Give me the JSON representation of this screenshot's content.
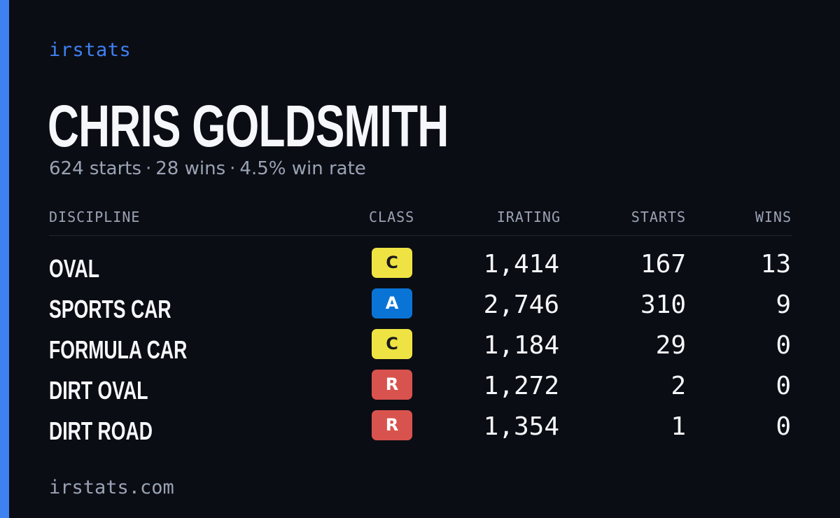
{
  "brand": "irstats",
  "driver": {
    "name": "CHRIS GOLDSMITH",
    "starts_text": "624 starts",
    "wins_text": "28 wins",
    "winrate_text": "4.5% win rate",
    "separator": "·"
  },
  "table": {
    "headers": {
      "discipline": "DISCIPLINE",
      "class": "CLASS",
      "irating": "IRATING",
      "starts": "STARTS",
      "wins": "WINS"
    },
    "rows": [
      {
        "discipline": "OVAL",
        "class": "C",
        "irating": "1,414",
        "starts": "167",
        "wins": "13"
      },
      {
        "discipline": "SPORTS CAR",
        "class": "A",
        "irating": "2,746",
        "starts": "310",
        "wins": "9"
      },
      {
        "discipline": "FORMULA CAR",
        "class": "C",
        "irating": "1,184",
        "starts": "29",
        "wins": "0"
      },
      {
        "discipline": "DIRT OVAL",
        "class": "R",
        "irating": "1,272",
        "starts": "2",
        "wins": "0"
      },
      {
        "discipline": "DIRT ROAD",
        "class": "R",
        "irating": "1,354",
        "starts": "1",
        "wins": "0"
      }
    ]
  },
  "class_colors": {
    "A": {
      "bg": "#0a74d6",
      "fg": "#ffffff"
    },
    "C": {
      "bg": "#efe344",
      "fg": "#1b1b1b"
    },
    "R": {
      "bg": "#d9534e",
      "fg": "#ffffff"
    }
  },
  "footer": "irstats.com",
  "colors": {
    "background": "#0b0d14",
    "accent": "#3e82f2",
    "text_primary": "#f6f7fb",
    "text_muted": "#9aa3b4"
  }
}
